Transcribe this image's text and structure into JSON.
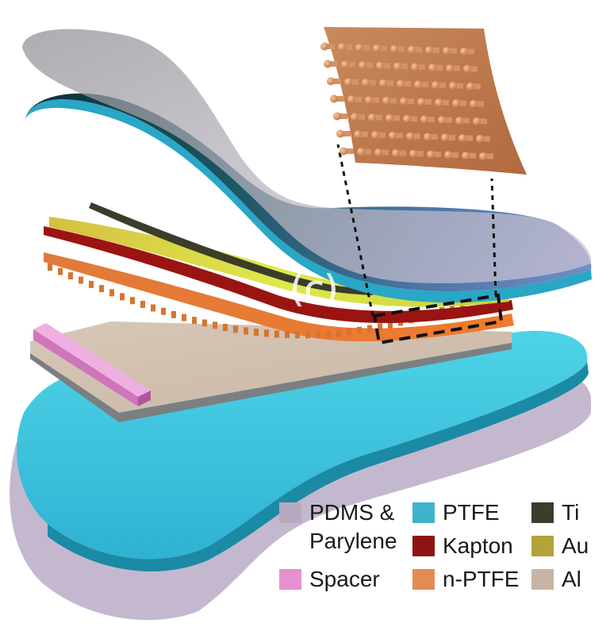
{
  "overlay": {
    "label": "(c)"
  },
  "legend": {
    "items": [
      {
        "key": "pdms",
        "label": "PDMS &\nParylene",
        "color": "#b7a9bf"
      },
      {
        "key": "ptfe",
        "label": "PTFE",
        "color": "#3fb3cd"
      },
      {
        "key": "ti",
        "label": "Ti",
        "color": "#3c3d2c"
      },
      {
        "key": "kapton",
        "label": "Kapton",
        "color": "#8e1413"
      },
      {
        "key": "au",
        "label": "Au",
        "color": "#b3a33a"
      },
      {
        "key": "spacer",
        "label": "Spacer",
        "color": "#e590cf"
      },
      {
        "key": "nptfe",
        "label": "n-PTFE",
        "color": "#e48a55"
      },
      {
        "key": "al",
        "label": "Al",
        "color": "#c8b5a5"
      }
    ]
  }
}
